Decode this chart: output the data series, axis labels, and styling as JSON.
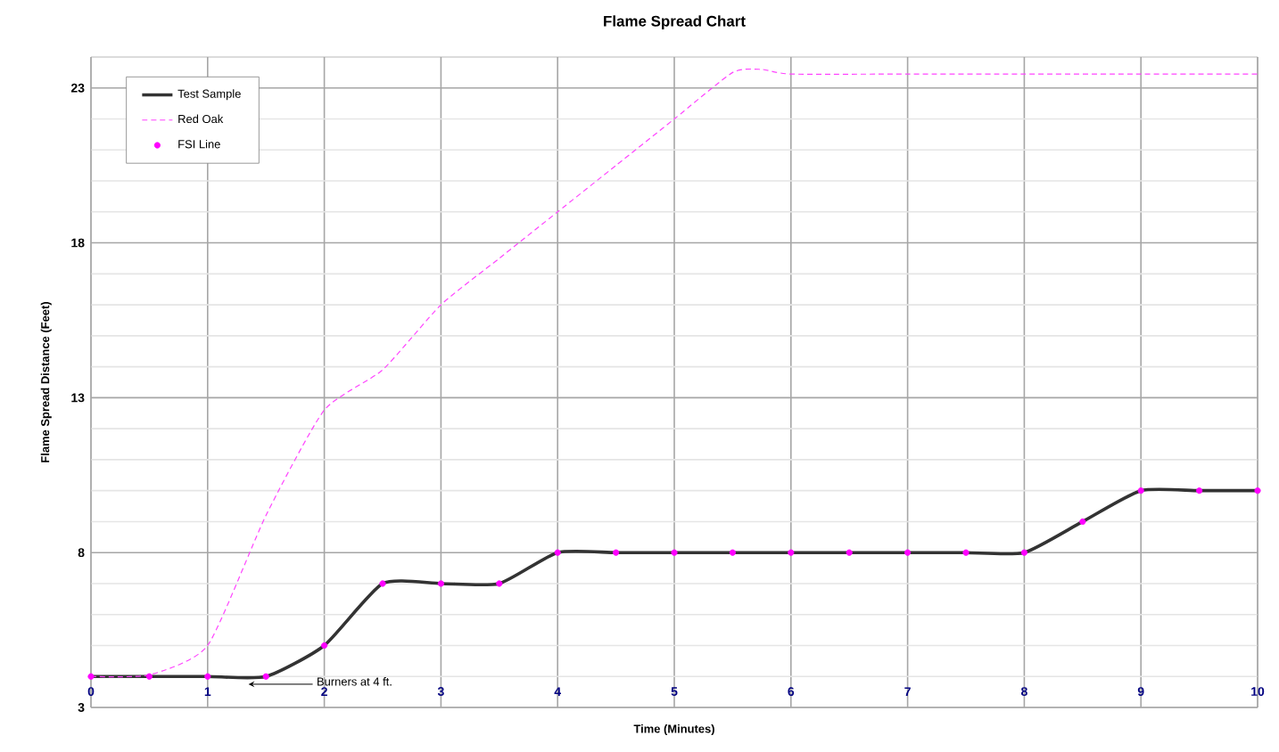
{
  "chart_data": {
    "type": "line",
    "title": "Flame Spread Chart",
    "xlabel": "Time (Minutes)",
    "ylabel": "Flame Spread Distance (Feet)",
    "xlim": [
      0,
      10
    ],
    "ylim": [
      3,
      24
    ],
    "xticks": [
      0,
      1,
      2,
      3,
      4,
      5,
      6,
      7,
      8,
      9,
      10
    ],
    "yticks": [
      3,
      8,
      13,
      18,
      23
    ],
    "grid": true,
    "legend": "top left",
    "series": [
      {
        "name": "Test Sample",
        "color": "#333333",
        "line_style": "solid",
        "marker": "none",
        "x": [
          0,
          0.5,
          1,
          1.5,
          2,
          2.5,
          3,
          3.5,
          4,
          4.5,
          5,
          5.5,
          6,
          6.5,
          7,
          7.5,
          8,
          8.5,
          9,
          9.5,
          10
        ],
        "values": [
          4,
          4,
          4,
          4,
          5,
          7,
          7,
          7,
          8,
          8,
          8,
          8,
          8,
          8,
          8,
          8,
          8,
          9,
          10,
          10,
          10
        ]
      },
      {
        "name": "Red Oak",
        "color": "#ff44ff",
        "line_style": "dashed",
        "marker": "none",
        "x": [
          0,
          0.5,
          1,
          1.5,
          2,
          2.5,
          3,
          3.5,
          4,
          4.5,
          5,
          5.5,
          5.75,
          6,
          7,
          8,
          9,
          10
        ],
        "values": [
          4,
          4.05,
          5,
          9.2,
          12.6,
          13.9,
          16,
          17.5,
          19,
          20.5,
          22,
          23.5,
          23.6,
          23.45,
          23.45,
          23.45,
          23.45,
          23.45
        ]
      },
      {
        "name": "FSI Line",
        "type": "scatter",
        "color": "#ff00ff",
        "marker": "circle",
        "x": [
          0,
          0.5,
          1,
          1.5,
          2,
          2.5,
          3,
          3.5,
          4,
          4.5,
          5,
          5.5,
          6,
          6.5,
          7,
          7.5,
          8,
          8.5,
          9,
          9.5,
          10
        ],
        "values": [
          4,
          4,
          4,
          4,
          5,
          7,
          7,
          7,
          8,
          8,
          8,
          8,
          8,
          8,
          8,
          8,
          8,
          9,
          10,
          10,
          10
        ]
      }
    ],
    "annotations": [
      {
        "text": "Burners at 4 ft.",
        "x": 1.35,
        "y": 3.75
      }
    ]
  }
}
